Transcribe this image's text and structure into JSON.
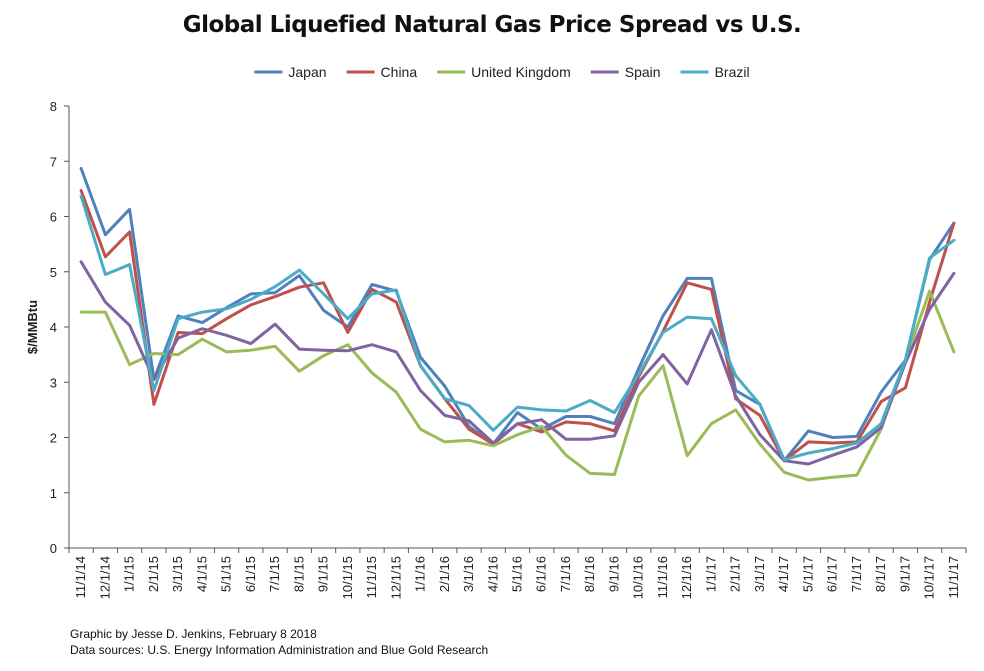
{
  "chart_data": {
    "type": "line",
    "title": "Global Liquefied Natural Gas Price Spread vs U.S.",
    "ylabel": "$/MMBtu",
    "xlabel": "",
    "ylim": [
      0,
      8
    ],
    "yticks": [
      0,
      1,
      2,
      3,
      4,
      5,
      6,
      7,
      8
    ],
    "grid": false,
    "legend_position": "top",
    "categories": [
      "11/1/14",
      "12/1/14",
      "1/1/15",
      "2/1/15",
      "3/1/15",
      "4/1/15",
      "5/1/15",
      "6/1/15",
      "7/1/15",
      "8/1/15",
      "9/1/15",
      "10/1/15",
      "11/1/15",
      "12/1/15",
      "1/1/16",
      "2/1/16",
      "3/1/16",
      "4/1/16",
      "5/1/16",
      "6/1/16",
      "7/1/16",
      "8/1/16",
      "9/1/16",
      "10/1/16",
      "11/1/16",
      "12/1/16",
      "1/1/17",
      "2/1/17",
      "3/1/17",
      "4/1/17",
      "5/1/17",
      "6/1/17",
      "7/1/17",
      "8/1/17",
      "9/1/17",
      "10/1/17",
      "11/1/17"
    ],
    "series": [
      {
        "name": "Japan",
        "color": "#4f81bd",
        "values": [
          6.87,
          5.67,
          6.13,
          3.05,
          4.2,
          4.08,
          4.35,
          4.6,
          4.62,
          4.93,
          4.3,
          4.0,
          4.77,
          4.65,
          3.45,
          2.93,
          2.2,
          1.88,
          2.45,
          2.15,
          2.38,
          2.38,
          2.25,
          3.25,
          4.2,
          4.88,
          4.88,
          2.85,
          2.6,
          1.58,
          2.12,
          2.0,
          2.02,
          2.82,
          3.4,
          5.22,
          5.88
        ]
      },
      {
        "name": "China",
        "color": "#c0504d",
        "values": [
          6.47,
          5.27,
          5.72,
          2.6,
          3.9,
          3.88,
          4.15,
          4.4,
          4.55,
          4.72,
          4.8,
          3.9,
          4.68,
          4.45,
          3.3,
          2.7,
          2.15,
          1.88,
          2.25,
          2.1,
          2.28,
          2.25,
          2.12,
          3.1,
          3.92,
          4.8,
          4.68,
          2.7,
          2.4,
          1.58,
          1.92,
          1.9,
          1.92,
          2.65,
          2.9,
          4.45,
          5.88
        ]
      },
      {
        "name": "United Kingdom",
        "color": "#9bbb59",
        "values": [
          4.27,
          4.27,
          3.32,
          3.52,
          3.5,
          3.78,
          3.55,
          3.58,
          3.65,
          3.2,
          3.48,
          3.68,
          3.17,
          2.82,
          2.15,
          1.92,
          1.95,
          1.85,
          2.05,
          2.2,
          1.68,
          1.35,
          1.33,
          2.75,
          3.3,
          1.67,
          2.25,
          2.5,
          1.88,
          1.37,
          1.23,
          1.28,
          1.32,
          2.15,
          3.4,
          4.65,
          3.55
        ]
      },
      {
        "name": "Spain",
        "color": "#8064a2",
        "values": [
          5.18,
          4.45,
          4.03,
          3.05,
          3.8,
          3.97,
          3.85,
          3.7,
          4.05,
          3.6,
          3.58,
          3.57,
          3.68,
          3.55,
          2.85,
          2.4,
          2.3,
          1.9,
          2.25,
          2.32,
          1.97,
          1.97,
          2.03,
          3.0,
          3.5,
          2.97,
          3.95,
          2.75,
          2.05,
          1.58,
          1.52,
          1.68,
          1.83,
          2.18,
          3.35,
          4.32,
          4.97
        ]
      },
      {
        "name": "Brazil",
        "color": "#4bacc6",
        "values": [
          6.37,
          4.95,
          5.13,
          2.85,
          4.15,
          4.27,
          4.33,
          4.5,
          4.73,
          5.03,
          4.6,
          4.15,
          4.6,
          4.67,
          3.3,
          2.7,
          2.58,
          2.13,
          2.55,
          2.5,
          2.48,
          2.67,
          2.45,
          3.15,
          3.9,
          4.18,
          4.15,
          3.12,
          2.6,
          1.6,
          1.72,
          1.8,
          1.9,
          2.25,
          3.4,
          5.25,
          5.57
        ]
      }
    ]
  },
  "credits": {
    "line1": "Graphic by Jesse D. Jenkins, February 8 2018",
    "line2": "Data sources: U.S. Energy Information Administration and Blue Gold Research"
  }
}
